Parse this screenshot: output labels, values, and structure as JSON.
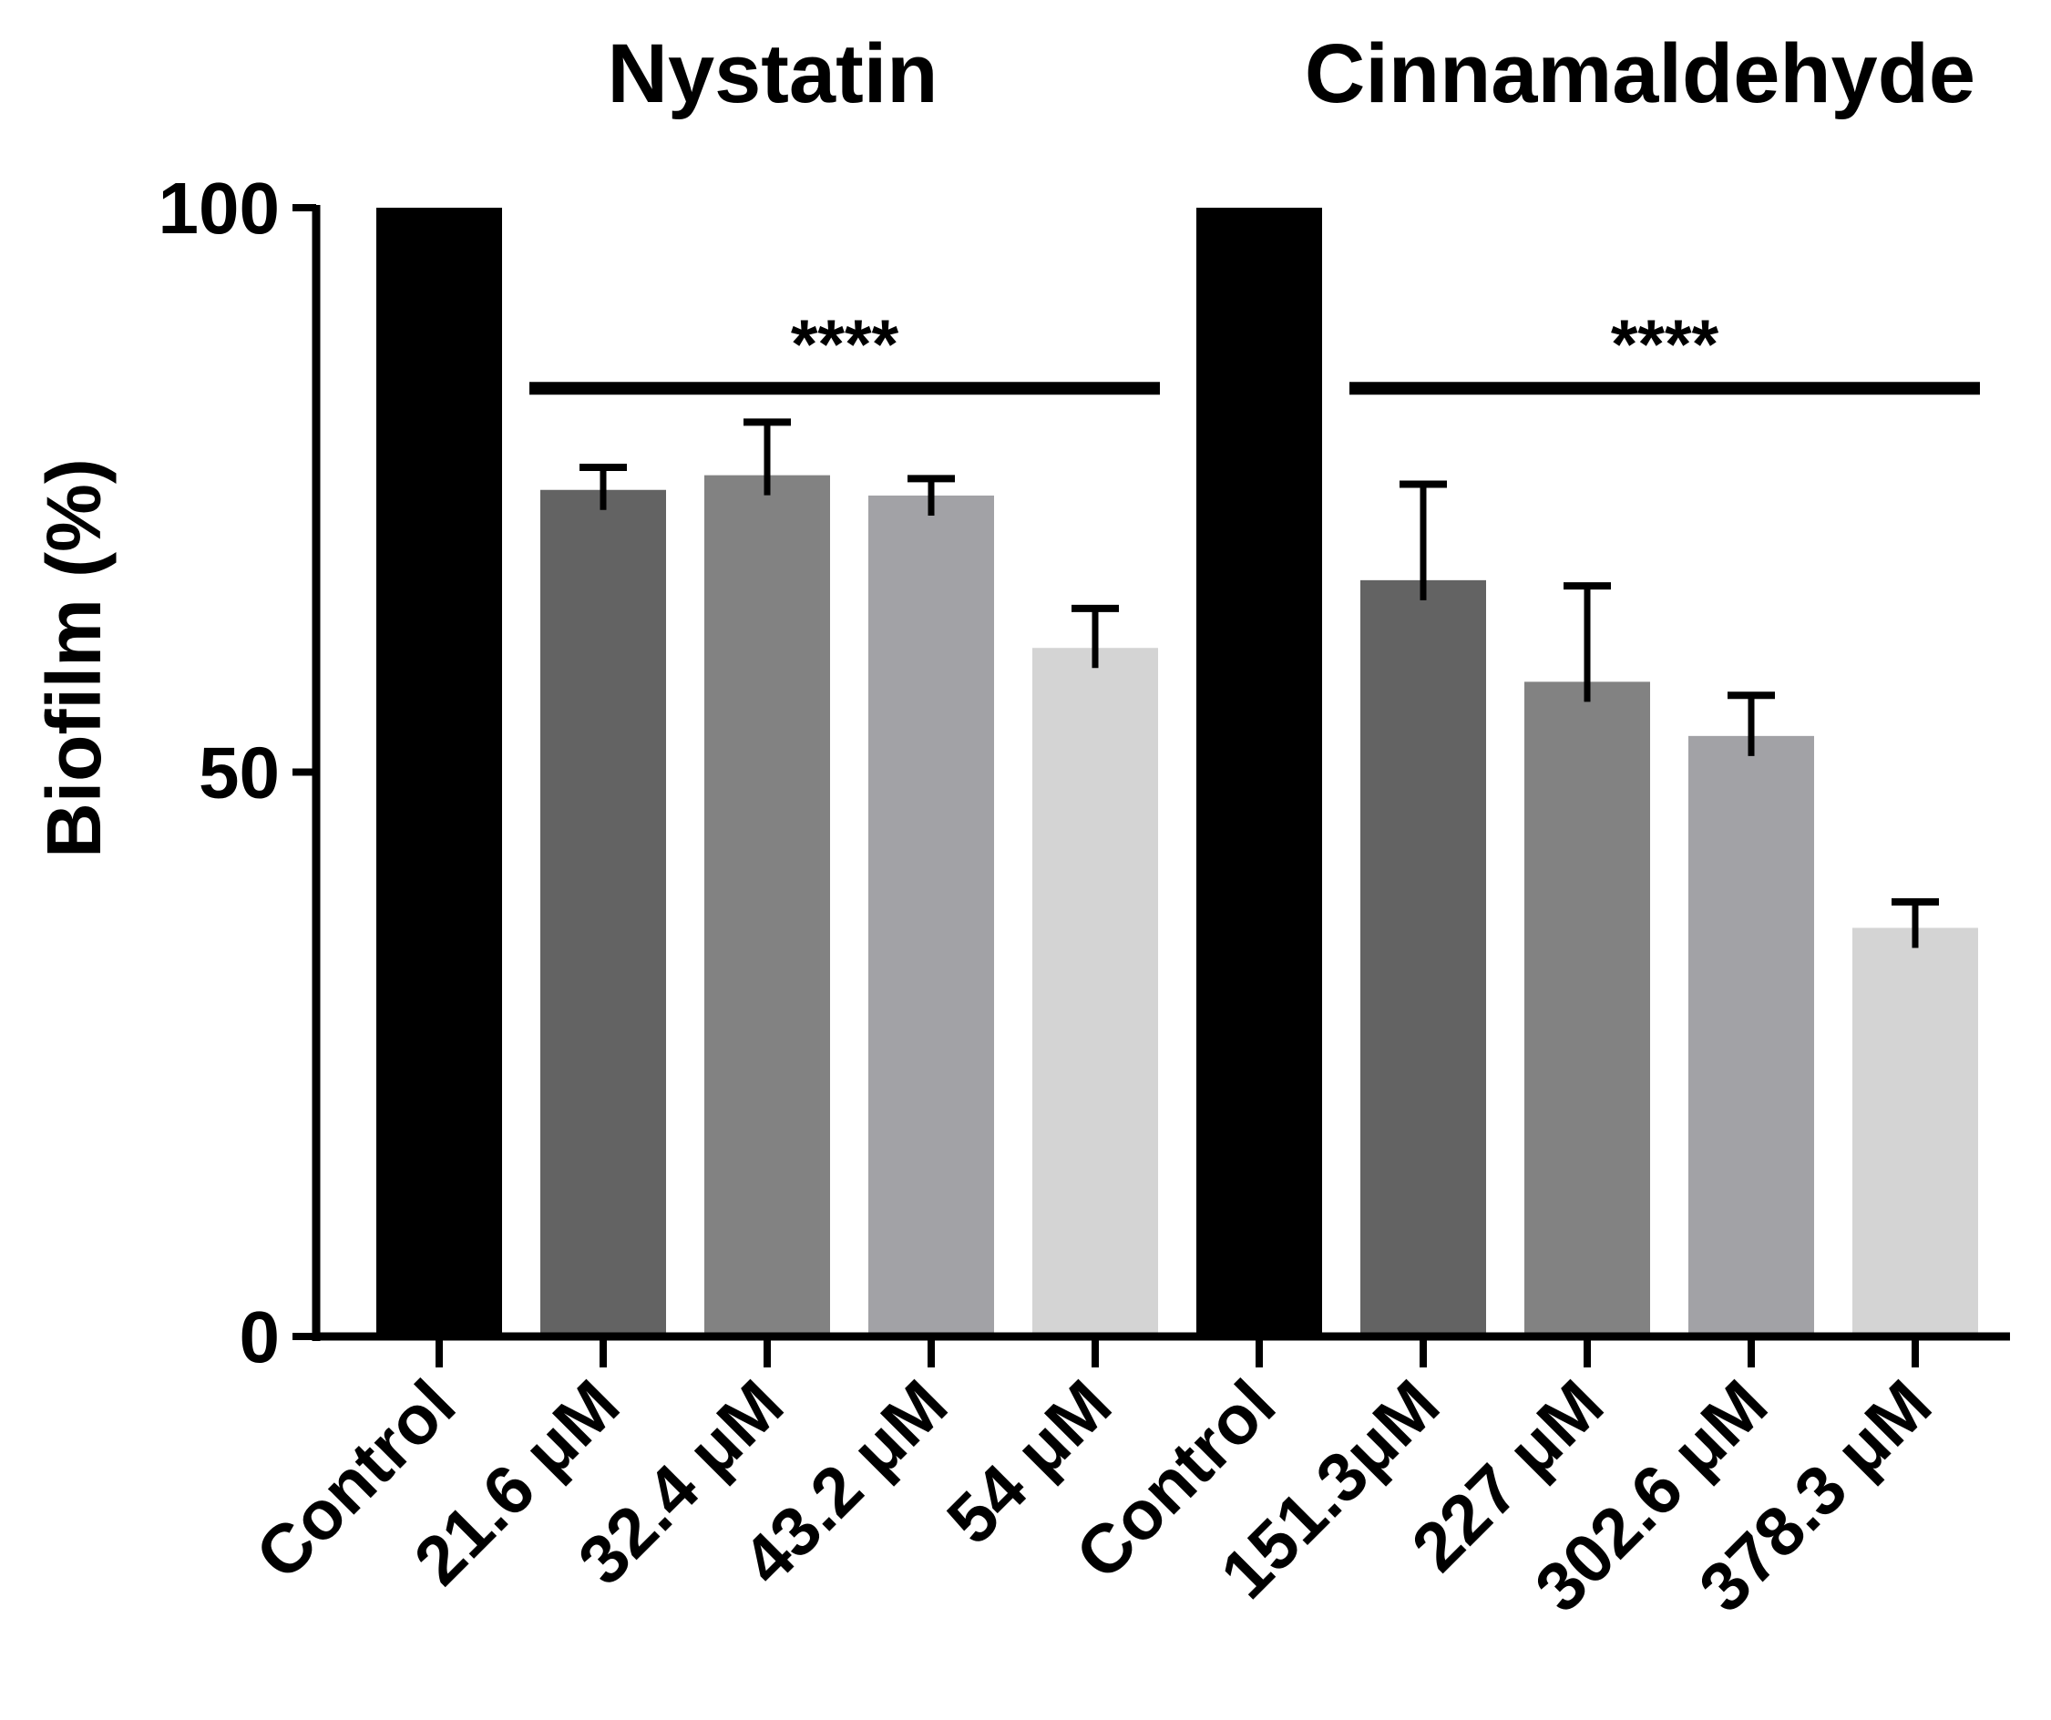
{
  "chart_data": {
    "type": "bar",
    "title": "",
    "xlabel": "",
    "ylabel": "Biofilm (%)",
    "ylim": [
      0,
      100
    ],
    "yticks": [
      0,
      50,
      100
    ],
    "grid": false,
    "categories": [
      "Control",
      "21.6 μM",
      "32.4 μM",
      "43.2 μM",
      "54 μM",
      "Control",
      "151.3μM",
      "227 μM",
      "302.6 μM",
      "378.3 μM"
    ],
    "values": [
      100,
      75,
      76.3,
      74.5,
      61,
      100,
      67,
      58,
      53.2,
      36.2
    ],
    "error_upper": [
      0,
      77,
      81,
      76,
      64.5,
      0,
      75.5,
      66.5,
      56.8,
      38.5
    ],
    "bar_colors": [
      "#000000",
      "#636363",
      "#828282",
      "#a2a2a6",
      "#d4d4d4",
      "#000000",
      "#636363",
      "#828282",
      "#a2a2a6",
      "#d4d4d4"
    ],
    "groups": [
      {
        "name": "Nystatin",
        "first_bar": 0,
        "last_bar": 4,
        "significance": "****",
        "sig_from_bar": 1,
        "sig_to_bar": 4,
        "sig_level": 84
      },
      {
        "name": "Cinnamaldehyde",
        "first_bar": 5,
        "last_bar": 9,
        "significance": "****",
        "sig_from_bar": 6,
        "sig_to_bar": 9,
        "sig_level": 84
      }
    ]
  }
}
